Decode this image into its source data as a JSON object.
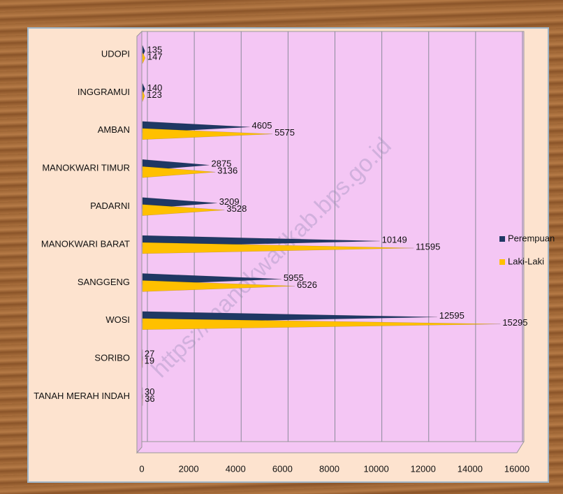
{
  "chart_data": {
    "type": "bar",
    "watermark": "https://manokwarikab.bps.go.id",
    "categories": [
      "UDOPI",
      "INGGRAMUI",
      "AMBAN",
      "MANOKWARI TIMUR",
      "PADARNI",
      "MANOKWARI BARAT",
      "SANGGENG",
      "WOSI",
      "SORIBO",
      "TANAH MERAH INDAH"
    ],
    "series": [
      {
        "name": "Perempuan",
        "color": "#1f3864",
        "values": [
          135,
          140,
          4605,
          2875,
          3209,
          10149,
          5955,
          12595,
          27,
          30
        ]
      },
      {
        "name": "Laki-Laki",
        "color": "#ffc000",
        "values": [
          147,
          123,
          5575,
          3136,
          3528,
          11595,
          6526,
          15295,
          19,
          36
        ]
      }
    ],
    "xlim": [
      0,
      16000
    ],
    "xticks": [
      0,
      2000,
      4000,
      6000,
      8000,
      10000,
      12000,
      14000,
      16000
    ],
    "grid": true
  }
}
